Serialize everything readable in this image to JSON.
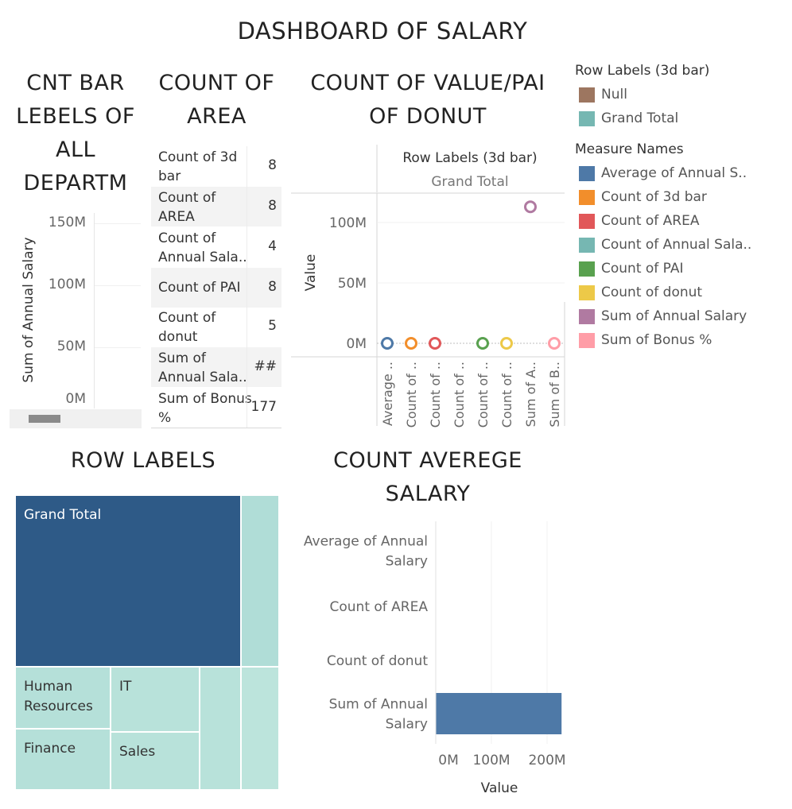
{
  "dashboard_title": "DASHBOARD OF SALARY",
  "panels": {
    "cnt_bar": {
      "title_lines": [
        "CNT BAR",
        "LEBELS OF",
        "ALL",
        "DEPARTM"
      ],
      "ylabel": "Sum of Annual Salary",
      "yticks": [
        "150M",
        "100M",
        "50M",
        "0M"
      ]
    },
    "count_area": {
      "title_lines": [
        "COUNT OF",
        "AREA"
      ],
      "rows": [
        {
          "label": "Count of 3d bar",
          "value": "8"
        },
        {
          "label": "Count of AREA",
          "value": "8"
        },
        {
          "label": "Count of Annual Sala..",
          "value": "4"
        },
        {
          "label": "Count of PAI",
          "value": "8"
        },
        {
          "label": "Count of donut",
          "value": "5"
        },
        {
          "label": "Sum of Annual Sala..",
          "value": "##"
        },
        {
          "label": "Sum of Bonus %",
          "value": "177"
        }
      ]
    },
    "donut": {
      "title_lines": [
        "COUNT OF VALUE/PAI",
        "OF DONUT"
      ],
      "header": "Row Labels (3d bar)",
      "subheader": "Grand Total",
      "ylabel": "Value",
      "yticks": [
        "100M",
        "50M",
        "0M"
      ],
      "xticks": [
        "Average ..",
        "Count of ..",
        "Count of ..",
        "Count of ..",
        "Count of ..",
        "Count of ..",
        "Sum of A..",
        "Sum of B.."
      ]
    },
    "legend": {
      "row_labels_title": "Row Labels (3d bar)",
      "row_labels": [
        {
          "label": "Null",
          "color": "#9d7660"
        },
        {
          "label": "Grand Total",
          "color": "#76b7b2"
        }
      ],
      "measure_title": "Measure Names",
      "measures": [
        {
          "label": "Average of Annual S..",
          "color": "#4e79a7"
        },
        {
          "label": "Count of 3d bar",
          "color": "#f28e2b"
        },
        {
          "label": "Count of AREA",
          "color": "#e15759"
        },
        {
          "label": "Count of Annual Sala..",
          "color": "#76b7b2"
        },
        {
          "label": "Count of PAI",
          "color": "#59a14f"
        },
        {
          "label": "Count of donut",
          "color": "#edc948"
        },
        {
          "label": "Sum of Annual Salary",
          "color": "#b07aa1"
        },
        {
          "label": "Sum of Bonus %",
          "color": "#ff9da7"
        }
      ]
    },
    "treemap": {
      "title": "ROW LABELS",
      "tiles": [
        {
          "label": "Grand Total",
          "color": "#2e5a87"
        },
        {
          "label": "",
          "color": "#b0ddd7"
        },
        {
          "label": "Human Resources",
          "color": "#b5e0d9"
        },
        {
          "label": "IT",
          "color": "#b8e2da"
        },
        {
          "label": "",
          "color": "#b8e2da"
        },
        {
          "label": "",
          "color": "#bce4dc"
        },
        {
          "label": "Finance",
          "color": "#b5e0d9"
        },
        {
          "label": "Sales",
          "color": "#b8e2da"
        }
      ]
    },
    "avg_salary": {
      "title_lines": [
        "COUNT AVEREGE",
        "SALARY"
      ],
      "xlabel": "Value",
      "xticks": [
        "0M",
        "100M",
        "200M"
      ]
    }
  },
  "chart_data": [
    {
      "type": "scatter",
      "title": "COUNT OF VALUE/PAI OF DONUT",
      "xlabel": "",
      "ylabel": "Value",
      "categories": [
        "Average ..",
        "Count of ..",
        "Count of ..",
        "Count of ..",
        "Count of ..",
        "Count of ..",
        "Sum of A..",
        "Sum of B.."
      ],
      "values": [
        0,
        8,
        8,
        null,
        8,
        5,
        113000000,
        177
      ],
      "colors": [
        "#4e79a7",
        "#f28e2b",
        "#e15759",
        null,
        "#59a14f",
        "#edc948",
        "#b07aa1",
        "#ff9da7"
      ],
      "ylim": [
        0,
        120000000
      ],
      "grid": true
    },
    {
      "type": "bar",
      "title": "COUNT AVEREGE SALARY",
      "orientation": "horizontal",
      "categories": [
        "Average of Annual Salary",
        "Count of AREA",
        "Count of donut",
        "Sum of Annual Salary"
      ],
      "values": [
        0,
        8,
        5,
        226000000
      ],
      "xlabel": "Value",
      "xlim": [
        0,
        230000000
      ],
      "color": "#4e79a7",
      "grid": true
    },
    {
      "type": "bar",
      "title": "CNT BAR LEBELS OF ALL DEPARTM",
      "ylabel": "Sum of Annual Salary",
      "ylim": [
        0,
        160000000
      ],
      "values": [],
      "grid": true
    }
  ]
}
